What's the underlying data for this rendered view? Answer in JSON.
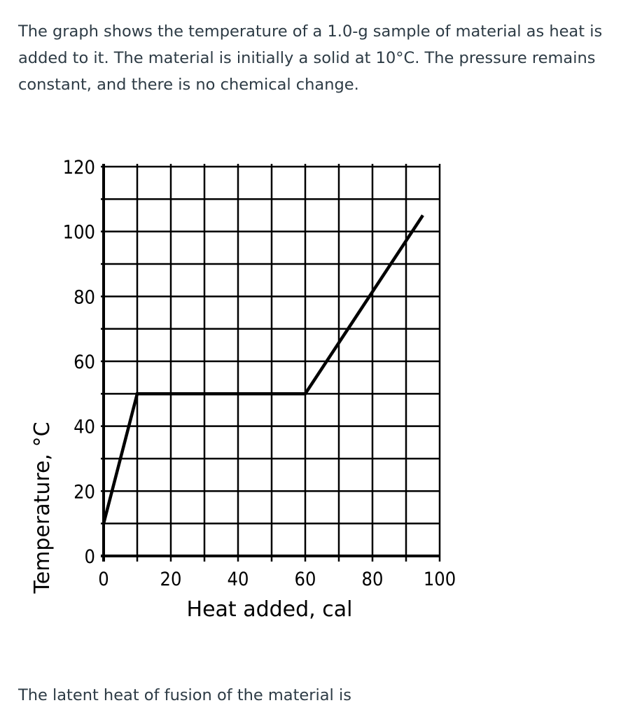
{
  "question": {
    "intro": "The graph shows the temperature of a 1.0-g sample of material as heat is added to it.  The material is initially a solid at 10°C.  The pressure remains constant, and there is no chemical change.",
    "prompt": "The latent heat of fusion of the material is"
  },
  "chart_data": {
    "type": "line",
    "title": "",
    "xlabel": "Heat added, cal",
    "ylabel": "Temperature, °C",
    "xlim": [
      0,
      100
    ],
    "ylim": [
      0,
      120
    ],
    "x_ticks": [
      0,
      20,
      40,
      60,
      80,
      100
    ],
    "y_ticks": [
      0,
      20,
      40,
      60,
      80,
      100,
      120
    ],
    "x_tick_labels": [
      "0",
      "20",
      "40",
      "60",
      "80",
      "100"
    ],
    "y_tick_labels": [
      "0",
      "20",
      "40",
      "60",
      "80",
      "100",
      "120"
    ],
    "grid": true,
    "grid_x_step": 10,
    "grid_y_step": 10,
    "series": [
      {
        "x": [
          0,
          10,
          60,
          95
        ],
        "y": [
          10,
          50,
          50,
          105
        ]
      }
    ],
    "line_color": "#000000",
    "grid_color": "#000000"
  }
}
